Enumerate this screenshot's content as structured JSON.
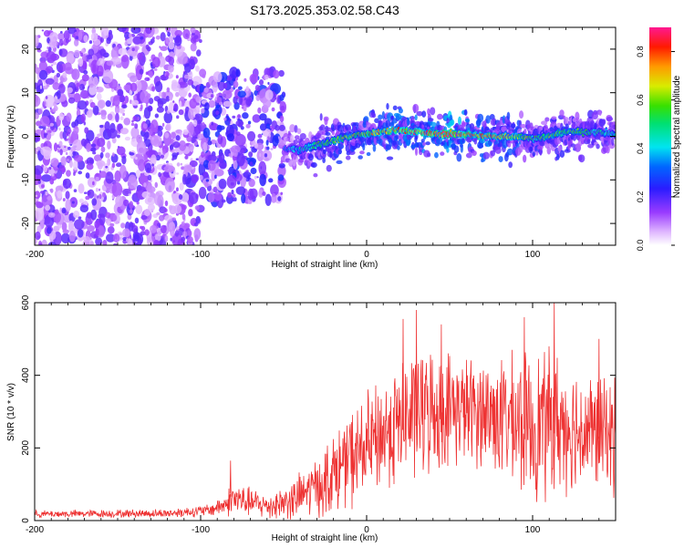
{
  "title": "S173.2025.353.02.58.C43",
  "colors": {
    "snr_line": "#ee3333",
    "cluster_dense": "#6a1ee0",
    "cluster_light": "#caa8f5",
    "ridge_core": "#e02020",
    "ridge_mid": "#18e0e8",
    "ridge_edge": "#3a10c8"
  },
  "colorbar": {
    "label": "Normalized spectral amplitude",
    "ticks": [
      "0.0",
      "0.2",
      "0.4",
      "0.6",
      "0.8"
    ],
    "tick_values": [
      0.0,
      0.2,
      0.4,
      0.6,
      0.8
    ],
    "range": [
      0,
      0.9
    ],
    "colormap": "rainbow (white-violet-blue-cyan-green-yellow-red-magenta)"
  },
  "chart_data": [
    {
      "type": "heatmap",
      "name": "spectrogram",
      "xlabel": "Height of straight line (km)",
      "ylabel": "Frequency (Hz)",
      "xlim": [
        -200,
        150
      ],
      "ylim": [
        -25,
        25
      ],
      "xticks": [
        -200,
        -100,
        0,
        100
      ],
      "xtick_labels": [
        "-200",
        "-100",
        "0",
        "100"
      ],
      "yticks": [
        -20,
        -10,
        0,
        10,
        20
      ],
      "ytick_labels": [
        "-20",
        "-10",
        "0",
        "10",
        "20"
      ],
      "ridge": {
        "x": [
          -50,
          -40,
          -30,
          -20,
          -10,
          0,
          10,
          20,
          30,
          40,
          50,
          60,
          70,
          80,
          90,
          100,
          110,
          120,
          130,
          140,
          150
        ],
        "freq": [
          -3,
          -3,
          -2,
          -1,
          0,
          0.5,
          1,
          1.5,
          1,
          0.5,
          0.5,
          0.5,
          0,
          0,
          0,
          -0.5,
          0,
          1,
          1,
          1,
          0.5
        ],
        "amplitude": [
          0.35,
          0.45,
          0.55,
          0.6,
          0.65,
          0.7,
          0.75,
          0.8,
          0.8,
          0.85,
          0.9,
          0.85,
          0.8,
          0.75,
          0.7,
          0.55,
          0.6,
          0.6,
          0.55,
          0.5,
          0.45
        ]
      },
      "noise_regions": [
        {
          "x_range": [
            -200,
            -100
          ],
          "freq_range": [
            -25,
            25
          ],
          "amplitude": 0.15
        },
        {
          "x_range": [
            -100,
            -50
          ],
          "freq_range": [
            -15,
            15
          ],
          "amplitude": 0.2
        }
      ]
    },
    {
      "type": "line",
      "name": "snr",
      "xlabel": "Height of straight line (km)",
      "ylabel": "SNR (10 * v/v)",
      "xlim": [
        -200,
        150
      ],
      "ylim": [
        0,
        600
      ],
      "xticks": [
        -200,
        -100,
        0,
        100
      ],
      "xtick_labels": [
        "-200",
        "-100",
        "0",
        "100"
      ],
      "yticks": [
        0,
        200,
        400,
        600
      ],
      "ytick_labels": [
        "0",
        "200",
        "400",
        "600"
      ],
      "envelope": {
        "x": [
          -200,
          -120,
          -95,
          -85,
          -80,
          -75,
          -60,
          -45,
          -30,
          -20,
          -10,
          0,
          10,
          20,
          30,
          40,
          50,
          60,
          70,
          80,
          90,
          100,
          110,
          120,
          130,
          140,
          150
        ],
        "mean": [
          18,
          20,
          28,
          45,
          60,
          55,
          40,
          55,
          95,
          130,
          170,
          200,
          240,
          270,
          295,
          305,
          310,
          305,
          300,
          285,
          270,
          260,
          270,
          265,
          250,
          240,
          235
        ],
        "spread": [
          8,
          10,
          14,
          25,
          45,
          35,
          30,
          45,
          70,
          90,
          110,
          120,
          130,
          140,
          150,
          140,
          130,
          120,
          130,
          140,
          150,
          170,
          170,
          150,
          140,
          130,
          130
        ]
      },
      "peaks": [
        {
          "x": -82,
          "y": 165
        },
        {
          "x": 22,
          "y": 555
        },
        {
          "x": 30,
          "y": 580
        },
        {
          "x": 45,
          "y": 540
        },
        {
          "x": 95,
          "y": 560
        },
        {
          "x": 113,
          "y": 600
        },
        {
          "x": 140,
          "y": 500
        }
      ]
    }
  ]
}
